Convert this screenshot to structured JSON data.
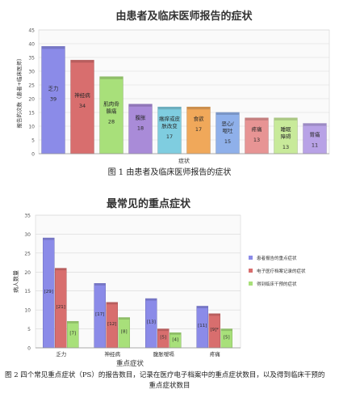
{
  "chart_data": [
    {
      "type": "bar",
      "title": "由患者及临床医师报告的症状",
      "xlabel": "症状",
      "ylabel": "报告的次数（患者+临床医师）",
      "ylim": [
        0,
        45
      ],
      "yticks": [
        0,
        5,
        10,
        15,
        20,
        25,
        30,
        35,
        40,
        45
      ],
      "grid": true,
      "categories": [
        "乏力",
        "神经病",
        "肌肉骨骼痛",
        "腹胀",
        "瘙痒或皮肤改变",
        "食欲",
        "恶心/呕吐",
        "疼痛",
        "睡眠障碍",
        "胃痛"
      ],
      "values": [
        39,
        34,
        28,
        18,
        17,
        17,
        15,
        13,
        13,
        11
      ],
      "colors": [
        "#8b8be8",
        "#d86e6e",
        "#a8e07a",
        "#a98bd8",
        "#7fcde0",
        "#f0a85a",
        "#8fb0ea",
        "#e79494",
        "#c8ea9a",
        "#b8a2e6"
      ],
      "data_labels": [
        "39",
        "34",
        "28",
        "18",
        "17",
        "17",
        "15",
        "13",
        "13",
        "11"
      ]
    },
    {
      "type": "bar",
      "title": "最常见的重点症状",
      "xlabel": "重点症状",
      "ylabel": "病人数量",
      "ylim": [
        0,
        35
      ],
      "yticks": [
        0,
        5,
        10,
        15,
        20,
        25,
        30,
        35
      ],
      "grid": true,
      "legend_position": "right",
      "categories": [
        "乏力",
        "神经病",
        "腹胀嗳嗝",
        "疼痛"
      ],
      "series": [
        {
          "name": "患者报告的重点症状",
          "color": "#8b8be8",
          "values": [
            29,
            17,
            13,
            11
          ],
          "labels": [
            "[29]",
            "[17]",
            "[13]",
            "[11]"
          ]
        },
        {
          "name": "电子医疗档案记录的症状",
          "color": "#d86e6e",
          "values": [
            21,
            12,
            5,
            9
          ],
          "labels": [
            "[21]",
            "[12]",
            "[5]",
            "[9]*"
          ]
        },
        {
          "name": "得到临床干预的症状",
          "color": "#a8e07a",
          "values": [
            7,
            8,
            4,
            5
          ],
          "labels": [
            "[7]",
            "[8]",
            "[4]",
            "[5]"
          ]
        }
      ]
    }
  ],
  "captions": {
    "fig1": "图 1  由患者及临床医师报告的症状",
    "fig2_line1": "图 2  四个常见重点症状（PS）的报告数目，记录在医疗电子档案中的重点症状数目，以及得到临床干预的",
    "fig2_line2": "重点症状数目"
  }
}
